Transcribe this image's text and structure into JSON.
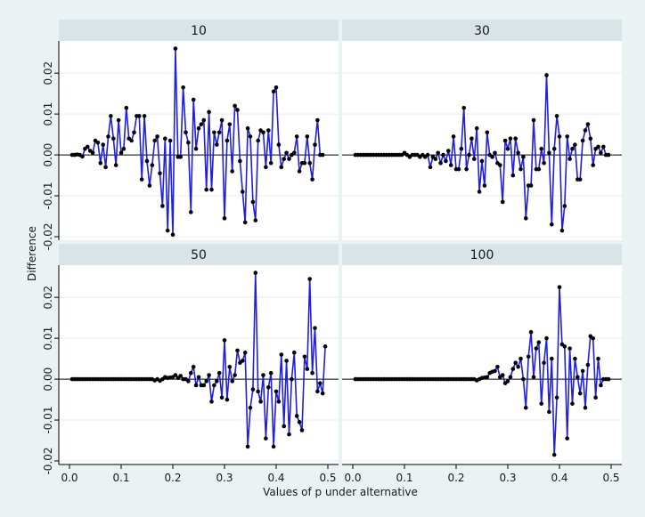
{
  "chart_data": {
    "type": "line",
    "xlabel": "Values of p under alternative",
    "ylabel": "Difference",
    "xlim": [
      0,
      0.5
    ],
    "ylim": [
      -0.02,
      0.027
    ],
    "x_ticks": [
      "0.0",
      "0.1",
      "0.2",
      "0.3",
      "0.4",
      "0.5"
    ],
    "y_ticks": [
      "-0.02",
      "-0.01",
      "0.00",
      "0.01",
      "0.02"
    ],
    "grid": true,
    "line_color": "#1f1fdd",
    "marker_color": "#000000",
    "panels": [
      {
        "title": "10",
        "x": [
          0.005,
          0.01,
          0.015,
          0.02,
          0.025,
          0.03,
          0.035,
          0.04,
          0.045,
          0.05,
          0.055,
          0.06,
          0.065,
          0.07,
          0.075,
          0.08,
          0.085,
          0.09,
          0.095,
          0.1,
          0.105,
          0.11,
          0.115,
          0.12,
          0.125,
          0.13,
          0.135,
          0.14,
          0.145,
          0.15,
          0.155,
          0.16,
          0.165,
          0.17,
          0.175,
          0.18,
          0.185,
          0.19,
          0.195,
          0.2,
          0.205,
          0.21,
          0.215,
          0.22,
          0.225,
          0.23,
          0.235,
          0.24,
          0.245,
          0.25,
          0.255,
          0.26,
          0.265,
          0.27,
          0.275,
          0.28,
          0.285,
          0.29,
          0.295,
          0.3,
          0.305,
          0.31,
          0.315,
          0.32,
          0.325,
          0.33,
          0.335,
          0.34,
          0.345,
          0.35,
          0.355,
          0.36,
          0.365,
          0.37,
          0.375,
          0.38,
          0.385,
          0.39,
          0.395,
          0.4,
          0.405,
          0.41,
          0.415,
          0.42,
          0.425,
          0.43,
          0.435,
          0.44,
          0.445,
          0.45,
          0.455,
          0.46,
          0.465,
          0.47,
          0.475,
          0.48,
          0.485,
          0.49
        ],
        "y": [
          0.0,
          0.0,
          0.0001,
          0.0,
          -0.0004,
          0.0015,
          0.002,
          0.001,
          0.0005,
          0.0035,
          0.003,
          -0.002,
          0.0025,
          -0.003,
          0.0045,
          0.0095,
          0.004,
          -0.0025,
          0.0085,
          0.0005,
          0.0015,
          0.0115,
          0.004,
          0.0035,
          0.0055,
          0.0095,
          0.0095,
          -0.006,
          0.0095,
          -0.0015,
          -0.0075,
          -0.0025,
          0.0035,
          0.0045,
          -0.0045,
          -0.0125,
          0.004,
          -0.0185,
          0.0035,
          -0.0195,
          0.026,
          -0.0005,
          -0.0005,
          0.0165,
          0.0055,
          0.003,
          -0.014,
          0.0135,
          0.0015,
          0.0065,
          0.0075,
          0.0085,
          -0.0085,
          0.0105,
          -0.0085,
          0.0055,
          0.0025,
          0.0055,
          0.0085,
          -0.0155,
          0.0035,
          0.0075,
          -0.004,
          0.012,
          0.011,
          -0.0015,
          -0.009,
          -0.0165,
          0.0065,
          0.0045,
          -0.0115,
          -0.016,
          0.0035,
          0.006,
          0.0055,
          -0.003,
          0.006,
          -0.002,
          0.0155,
          0.0165,
          0.0025,
          -0.003,
          -0.001,
          0.0005,
          -0.001,
          0.0,
          0.0005,
          0.0045,
          -0.004,
          -0.002,
          -0.002,
          0.0045,
          -0.002,
          -0.006,
          0.0025,
          0.0085,
          0.0,
          0.0
        ]
      },
      {
        "title": "30",
        "x": [
          0.005,
          0.01,
          0.015,
          0.02,
          0.025,
          0.03,
          0.035,
          0.04,
          0.045,
          0.05,
          0.055,
          0.06,
          0.065,
          0.07,
          0.075,
          0.08,
          0.085,
          0.09,
          0.095,
          0.1,
          0.105,
          0.11,
          0.115,
          0.12,
          0.125,
          0.13,
          0.135,
          0.14,
          0.145,
          0.15,
          0.155,
          0.16,
          0.165,
          0.17,
          0.175,
          0.18,
          0.185,
          0.19,
          0.195,
          0.2,
          0.205,
          0.21,
          0.215,
          0.22,
          0.225,
          0.23,
          0.235,
          0.24,
          0.245,
          0.25,
          0.255,
          0.26,
          0.265,
          0.27,
          0.275,
          0.28,
          0.285,
          0.29,
          0.295,
          0.3,
          0.305,
          0.31,
          0.315,
          0.32,
          0.325,
          0.33,
          0.335,
          0.34,
          0.345,
          0.35,
          0.355,
          0.36,
          0.365,
          0.37,
          0.375,
          0.38,
          0.385,
          0.39,
          0.395,
          0.4,
          0.405,
          0.41,
          0.415,
          0.42,
          0.425,
          0.43,
          0.435,
          0.44,
          0.445,
          0.45,
          0.455,
          0.46,
          0.465,
          0.47,
          0.475,
          0.48,
          0.485,
          0.49,
          0.495
        ],
        "y": [
          0,
          0,
          0,
          0,
          0,
          0,
          0,
          0,
          0,
          0,
          0,
          0,
          0,
          0,
          0,
          0,
          0,
          0,
          0,
          0.0005,
          0.0,
          -0.0005,
          0.0,
          0.0,
          0.0,
          -0.0005,
          0.0,
          -0.0005,
          0.0,
          -0.003,
          -0.0005,
          -0.001,
          0.0005,
          -0.002,
          0.0,
          -0.0015,
          0.001,
          -0.0025,
          0.0045,
          -0.0035,
          -0.0035,
          0.0015,
          0.0115,
          -0.0035,
          0.0,
          0.004,
          -0.001,
          0.0065,
          -0.009,
          -0.0015,
          -0.0075,
          0.0055,
          0.0,
          -0.0005,
          0.0005,
          -0.002,
          -0.0025,
          -0.0115,
          0.0035,
          0.0015,
          0.004,
          -0.005,
          0.004,
          0.0005,
          -0.0035,
          -0.0005,
          -0.0155,
          -0.0075,
          -0.0075,
          0.0085,
          -0.0035,
          -0.0035,
          0.0015,
          -0.002,
          0.0195,
          0.0005,
          -0.017,
          0.0015,
          0.0095,
          0.0045,
          -0.0185,
          -0.0125,
          0.0045,
          -0.001,
          0.0015,
          0.0025,
          -0.006,
          -0.006,
          0.0035,
          0.006,
          0.0075,
          0.004,
          -0.0025,
          0.0015,
          0.002,
          0.0005,
          0.002,
          0.0,
          0.0
        ]
      },
      {
        "title": "50",
        "x": [
          0.005,
          0.01,
          0.015,
          0.02,
          0.025,
          0.03,
          0.035,
          0.04,
          0.045,
          0.05,
          0.055,
          0.06,
          0.065,
          0.07,
          0.075,
          0.08,
          0.085,
          0.09,
          0.095,
          0.1,
          0.105,
          0.11,
          0.115,
          0.12,
          0.125,
          0.13,
          0.135,
          0.14,
          0.145,
          0.15,
          0.155,
          0.16,
          0.165,
          0.17,
          0.175,
          0.18,
          0.185,
          0.19,
          0.195,
          0.2,
          0.205,
          0.21,
          0.215,
          0.22,
          0.225,
          0.23,
          0.235,
          0.24,
          0.245,
          0.25,
          0.255,
          0.26,
          0.265,
          0.27,
          0.275,
          0.28,
          0.285,
          0.29,
          0.295,
          0.3,
          0.305,
          0.31,
          0.315,
          0.32,
          0.325,
          0.33,
          0.335,
          0.34,
          0.345,
          0.35,
          0.355,
          0.36,
          0.365,
          0.37,
          0.375,
          0.38,
          0.385,
          0.39,
          0.395,
          0.4,
          0.405,
          0.41,
          0.415,
          0.42,
          0.425,
          0.43,
          0.435,
          0.44,
          0.445,
          0.45,
          0.455,
          0.46,
          0.465,
          0.47,
          0.475,
          0.48,
          0.485,
          0.49,
          0.495
        ],
        "y": [
          0,
          0,
          0,
          0,
          0,
          0,
          0,
          0,
          0,
          0,
          0,
          0,
          0,
          0,
          0,
          0,
          0,
          0,
          0,
          0,
          0,
          0,
          0,
          0,
          0,
          0,
          0,
          0,
          0,
          0,
          0,
          0,
          -0.0003,
          0.0,
          -0.0004,
          0.0,
          0.0005,
          0.0003,
          0.0004,
          0.0005,
          0.001,
          0.0003,
          0.0008,
          0.0,
          0.0,
          -0.0005,
          0.0015,
          0.003,
          -0.0015,
          0.0005,
          -0.0015,
          -0.0015,
          -0.0005,
          0.001,
          -0.0055,
          -0.0015,
          -0.0005,
          0.0015,
          -0.0045,
          0.0095,
          -0.005,
          0.003,
          -0.0005,
          0.001,
          0.007,
          0.004,
          0.0045,
          0.0065,
          -0.0165,
          -0.007,
          -0.0025,
          0.026,
          -0.003,
          -0.0055,
          0.001,
          -0.0145,
          -0.002,
          0.0015,
          -0.0165,
          -0.003,
          -0.0055,
          0.006,
          -0.0115,
          0.0045,
          -0.0135,
          0.0,
          0.0065,
          -0.009,
          -0.0105,
          -0.0125,
          0.0055,
          0.0025,
          0.0245,
          0.0015,
          0.0125,
          -0.003,
          -0.001,
          -0.0035,
          0.008
        ]
      },
      {
        "title": "100",
        "x": [
          0.005,
          0.01,
          0.015,
          0.02,
          0.025,
          0.03,
          0.035,
          0.04,
          0.045,
          0.05,
          0.055,
          0.06,
          0.065,
          0.07,
          0.075,
          0.08,
          0.085,
          0.09,
          0.095,
          0.1,
          0.105,
          0.11,
          0.115,
          0.12,
          0.125,
          0.13,
          0.135,
          0.14,
          0.145,
          0.15,
          0.155,
          0.16,
          0.165,
          0.17,
          0.175,
          0.18,
          0.185,
          0.19,
          0.195,
          0.2,
          0.205,
          0.21,
          0.215,
          0.22,
          0.225,
          0.23,
          0.235,
          0.24,
          0.245,
          0.25,
          0.255,
          0.26,
          0.265,
          0.27,
          0.275,
          0.28,
          0.285,
          0.29,
          0.295,
          0.3,
          0.305,
          0.31,
          0.315,
          0.32,
          0.325,
          0.33,
          0.335,
          0.34,
          0.345,
          0.35,
          0.355,
          0.36,
          0.365,
          0.37,
          0.375,
          0.38,
          0.385,
          0.39,
          0.395,
          0.4,
          0.405,
          0.41,
          0.415,
          0.42,
          0.425,
          0.43,
          0.435,
          0.44,
          0.445,
          0.45,
          0.455,
          0.46,
          0.465,
          0.47,
          0.475,
          0.48,
          0.485,
          0.49,
          0.495
        ],
        "y": [
          0,
          0,
          0,
          0,
          0,
          0,
          0,
          0,
          0,
          0,
          0,
          0,
          0,
          0,
          0,
          0,
          0,
          0,
          0,
          0,
          0,
          0,
          0,
          0,
          0,
          0,
          0,
          0,
          0,
          0,
          0,
          0,
          0,
          0,
          0,
          0,
          0,
          0,
          0,
          0,
          0,
          0,
          0,
          0,
          0,
          0,
          0.0,
          -0.0003,
          0.0,
          0.0003,
          0.0004,
          0.0005,
          0.0015,
          0.0018,
          0.002,
          0.003,
          0.0005,
          0.001,
          -0.001,
          -0.0005,
          0.0005,
          0.0025,
          0.004,
          0.003,
          0.005,
          0.0,
          -0.007,
          0.0055,
          0.0115,
          0.0005,
          0.0075,
          0.009,
          -0.006,
          0.004,
          0.01,
          -0.008,
          0.005,
          -0.0185,
          -0.0045,
          0.0225,
          0.0085,
          0.008,
          -0.0145,
          0.0075,
          -0.006,
          0.005,
          0.0005,
          -0.0035,
          0.002,
          -0.007,
          0.0035,
          0.0105,
          0.01,
          -0.0045,
          0.005,
          -0.0015,
          0.0,
          0.0,
          0.0
        ]
      }
    ]
  }
}
